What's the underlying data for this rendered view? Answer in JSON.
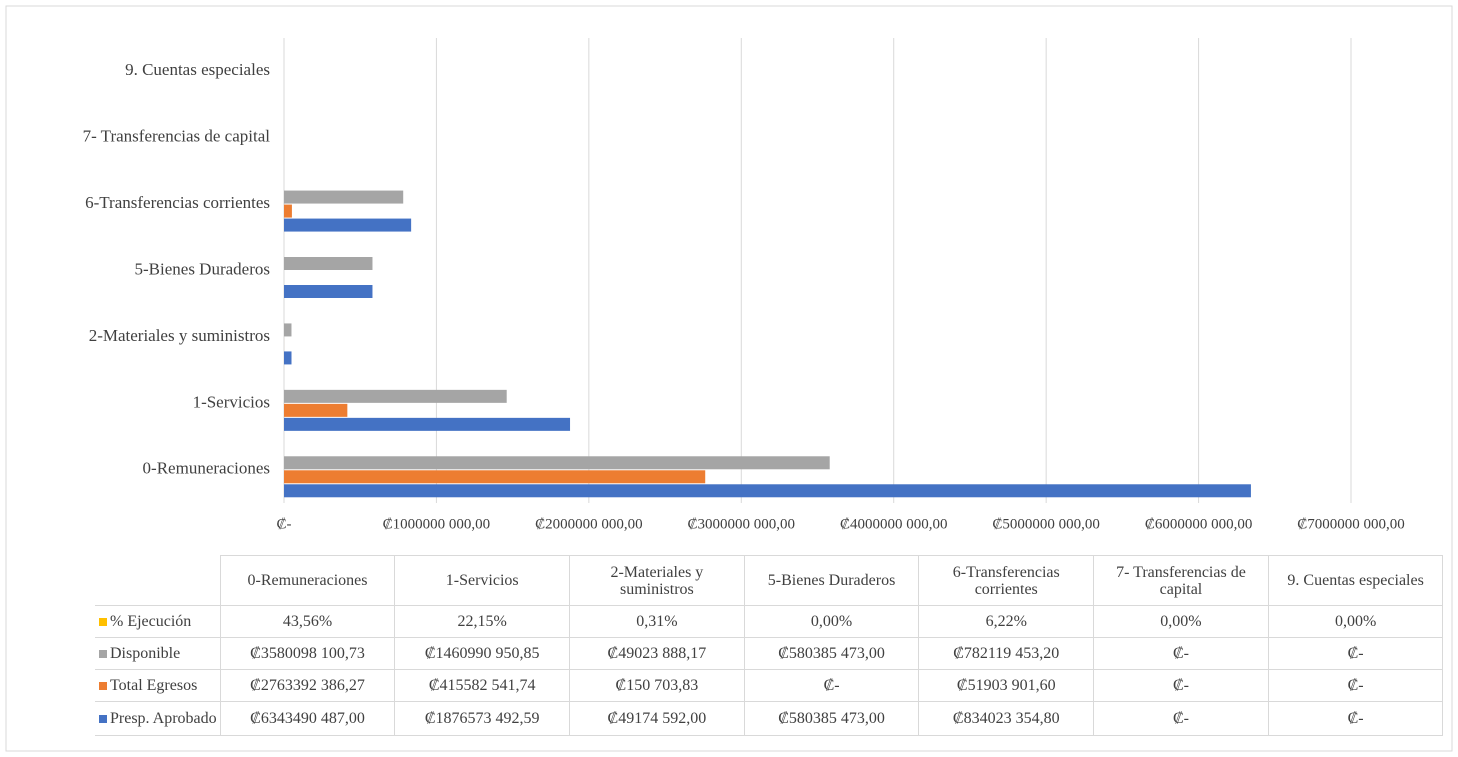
{
  "chart_data": {
    "type": "bar",
    "orientation": "horizontal",
    "categories": [
      "0-Remuneraciones",
      "1-Servicios",
      "2-Materiales y suministros",
      "5-Bienes Duraderos",
      "6-Transferencias corrientes",
      "7- Transferencias de capital",
      "9. Cuentas especiales"
    ],
    "series": [
      {
        "name": "Presp. Aprobado",
        "color": "#4472c4",
        "values": [
          6343490487.0,
          1876573492.59,
          49174592.0,
          580385473.0,
          834023354.8,
          0,
          0
        ],
        "value_labels": [
          "₡6343490 487,00",
          "₡1876573 492,59",
          "₡49174 592,00",
          "₡580385 473,00",
          "₡834023 354,80",
          "₡-",
          "₡-"
        ]
      },
      {
        "name": "Total Egresos",
        "color": "#ed7d31",
        "values": [
          2763392386.27,
          415582541.74,
          150703.83,
          0,
          51903901.6,
          0,
          0
        ],
        "value_labels": [
          "₡2763392 386,27",
          "₡415582 541,74",
          "₡150 703,83",
          "₡-",
          "₡51903 901,60",
          "₡-",
          "₡-"
        ]
      },
      {
        "name": "Disponible",
        "color": "#a5a5a5",
        "values": [
          3580098100.73,
          1460990950.85,
          49023888.17,
          580385473.0,
          782119453.2,
          0,
          0
        ],
        "value_labels": [
          "₡3580098 100,73",
          "₡1460990 950,85",
          "₡49023 888,17",
          "₡580385 473,00",
          "₡782119 453,20",
          "₡-",
          "₡-"
        ]
      },
      {
        "name": "% Ejecución",
        "color": "#ffc000",
        "values": [
          43.56,
          22.15,
          0.31,
          0,
          6.22,
          0,
          0
        ],
        "value_labels": [
          "43,56%",
          "22,15%",
          "0,31%",
          "0,00%",
          "6,22%",
          "0,00%",
          "0,00%"
        ]
      }
    ],
    "xlim": [
      0,
      7000000000
    ],
    "xticks": [
      {
        "value": 0,
        "label": "₡-"
      },
      {
        "value": 1000000000,
        "label": "₡1000000 000,00"
      },
      {
        "value": 2000000000,
        "label": "₡2000000 000,00"
      },
      {
        "value": 3000000000,
        "label": "₡3000000 000,00"
      },
      {
        "value": 4000000000,
        "label": "₡4000000 000,00"
      },
      {
        "value": 5000000000,
        "label": "₡5000000 000,00"
      },
      {
        "value": 6000000000,
        "label": "₡6000000 000,00"
      },
      {
        "value": 7000000000,
        "label": "₡7000000 000,00"
      }
    ],
    "grid": true,
    "legend": "table"
  }
}
